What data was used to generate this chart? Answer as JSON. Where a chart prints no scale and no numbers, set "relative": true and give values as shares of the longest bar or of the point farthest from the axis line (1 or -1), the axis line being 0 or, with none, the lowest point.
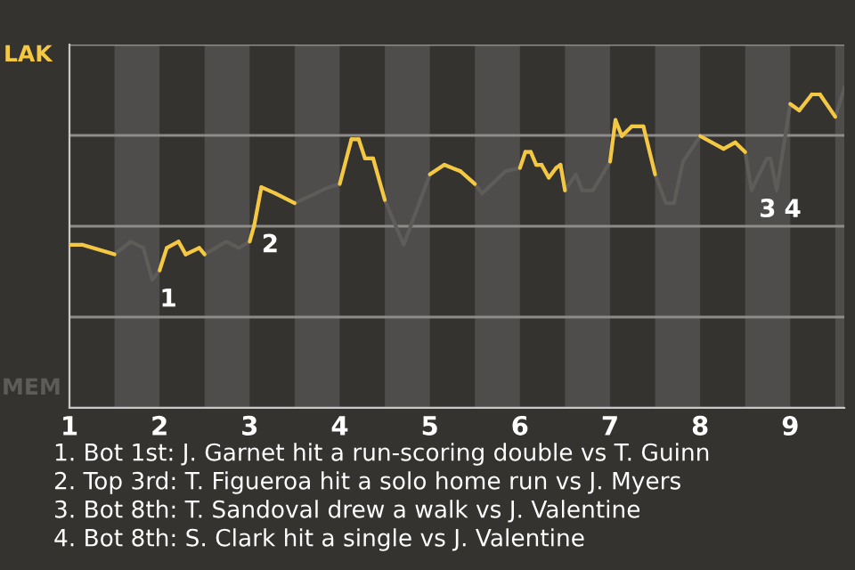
{
  "chart_data": {
    "type": "line",
    "relative": true,
    "xlim": [
      1,
      9.6
    ],
    "xticks": [
      1,
      2,
      3,
      4,
      5,
      6,
      7,
      8,
      9
    ],
    "grid": "y",
    "legend": false,
    "marker": "none",
    "line_style": "solid",
    "bands": [
      {
        "axis": "x",
        "from": 1.5,
        "to": 2,
        "color": "#4e4d4b"
      },
      {
        "axis": "x",
        "from": 2.5,
        "to": 3,
        "color": "#4e4d4b"
      },
      {
        "axis": "x",
        "from": 3.5,
        "to": 4,
        "color": "#4e4d4b"
      },
      {
        "axis": "x",
        "from": 4.5,
        "to": 5,
        "color": "#4e4d4b"
      },
      {
        "axis": "x",
        "from": 5.5,
        "to": 6,
        "color": "#4e4d4b"
      },
      {
        "axis": "x",
        "from": 6.5,
        "to": 7,
        "color": "#4e4d4b"
      },
      {
        "axis": "x",
        "from": 7.5,
        "to": 8,
        "color": "#4e4d4b"
      },
      {
        "axis": "x",
        "from": 8.5,
        "to": 9,
        "color": "#4e4d4b"
      },
      {
        "axis": "x",
        "from": 9.5,
        "to": 9.6,
        "color": "#4e4d4b"
      }
    ],
    "series": [
      {
        "color": "#5e5c59",
        "x": [
          1.0,
          1.14,
          1.5,
          1.68,
          1.82,
          1.92,
          2.0,
          2.08,
          2.21,
          2.29,
          2.44,
          2.5,
          2.74,
          2.88,
          3.0,
          3.05,
          3.13,
          3.29,
          3.5,
          3.88,
          4.0,
          4.13,
          4.21,
          4.28,
          4.37,
          4.5,
          4.71,
          5.0,
          5.16,
          5.34,
          5.5,
          5.58,
          5.84,
          6.0,
          6.06,
          6.12,
          6.18,
          6.24,
          6.32,
          6.4,
          6.45,
          6.5,
          6.62,
          6.69,
          6.81,
          7.0,
          7.06,
          7.13,
          7.24,
          7.37,
          7.5,
          7.62,
          7.71,
          7.81,
          8.0,
          8.26,
          8.39,
          8.5,
          8.57,
          8.74,
          8.78,
          8.85,
          9.0,
          9.1,
          9.24,
          9.33,
          9.5,
          9.6
        ],
        "values": [
          0.51,
          0.51,
          0.48,
          0.52,
          0.5,
          0.4,
          0.43,
          0.5,
          0.52,
          0.48,
          0.5,
          0.48,
          0.52,
          0.5,
          0.52,
          0.57,
          0.69,
          0.67,
          0.64,
          0.69,
          0.7,
          0.84,
          0.84,
          0.78,
          0.78,
          0.65,
          0.51,
          0.73,
          0.76,
          0.74,
          0.7,
          0.67,
          0.74,
          0.75,
          0.8,
          0.8,
          0.76,
          0.76,
          0.72,
          0.75,
          0.76,
          0.68,
          0.73,
          0.68,
          0.68,
          0.77,
          0.9,
          0.85,
          0.88,
          0.88,
          0.73,
          0.64,
          0.64,
          0.77,
          0.85,
          0.81,
          0.83,
          0.8,
          0.68,
          0.78,
          0.78,
          0.68,
          0.95,
          0.93,
          0.98,
          0.98,
          0.91,
          1.0
        ],
        "colors": [
          "#f5c842",
          "#f5c842",
          "#5e5c59",
          "#5e5c59",
          "#5e5c59",
          "#5e5c59",
          "#f5c842",
          "#f5c842",
          "#f5c842",
          "#f5c842",
          "#f5c842",
          "#5e5c59",
          "#5e5c59",
          "#5e5c59",
          "#f5c842",
          "#f5c842",
          "#f5c842",
          "#f5c842",
          "#5e5c59",
          "#5e5c59",
          "#f5c842",
          "#f5c842",
          "#f5c842",
          "#f5c842",
          "#f5c842",
          "#5e5c59",
          "#5e5c59",
          "#f5c842",
          "#f5c842",
          "#f5c842",
          "#5e5c59",
          "#5e5c59",
          "#5e5c59",
          "#f5c842",
          "#f5c842",
          "#f5c842",
          "#f5c842",
          "#f5c842",
          "#f5c842",
          "#f5c842",
          "#f5c842",
          "#5e5c59",
          "#5e5c59",
          "#5e5c59",
          "#5e5c59",
          "#f5c842",
          "#f5c842",
          "#f5c842",
          "#f5c842",
          "#f5c842",
          "#5e5c59",
          "#5e5c59",
          "#5e5c59",
          "#5e5c59",
          "#f5c842",
          "#f5c842",
          "#f5c842",
          "#5e5c59",
          "#5e5c59",
          "#5e5c59",
          "#5e5c59",
          "#5e5c59",
          "#f5c842",
          "#f5c842",
          "#f5c842",
          "#f5c842",
          "#5e5c59",
          "#5e5c59"
        ]
      }
    ],
    "annotations": [
      "LAK",
      "MEM",
      {
        "text": "1",
        "x": 1.92,
        "y": 0.4
      },
      {
        "text": "2",
        "x": 3.05,
        "y": 0.57
      },
      {
        "text": "3",
        "x": 8.57,
        "y": 0.68
      },
      {
        "text": "4",
        "x": 8.85,
        "y": 0.68
      },
      "1. Bot 1st: J. Garnet hit a run-scoring double vs T. Guinn",
      "2. Top 3rd: T. Figueroa hit a solo home run vs J. Myers",
      "3. Bot 8th: T. Sandoval drew a walk vs J. Valentine",
      "4. Bot 8th: S. Clark hit a single vs J. Valentine"
    ]
  }
}
